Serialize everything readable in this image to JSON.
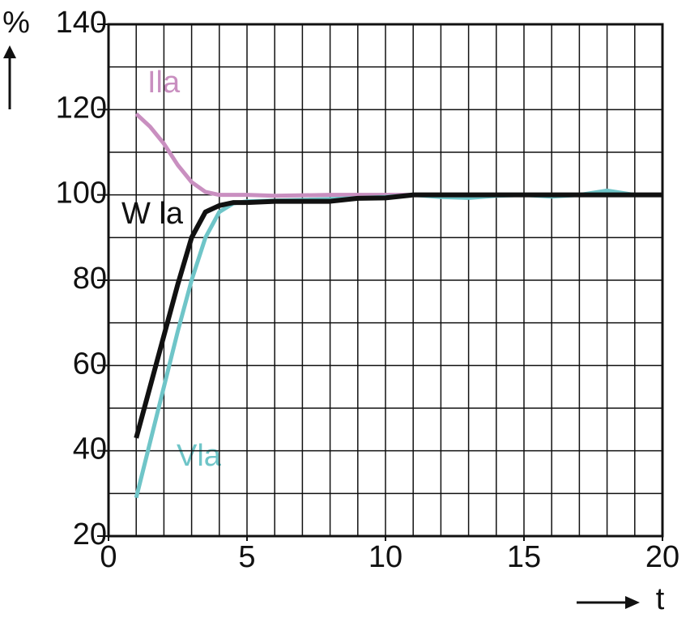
{
  "chart_data": {
    "type": "line",
    "y_label": "%",
    "x_label": "t",
    "xlim": [
      0,
      20
    ],
    "ylim": [
      20,
      140
    ],
    "xticks": [
      0,
      5,
      10,
      15,
      20
    ],
    "yticks": [
      20,
      40,
      60,
      80,
      100,
      120,
      140
    ],
    "x_grid": [
      1,
      2,
      3,
      4,
      5,
      6,
      7,
      8,
      9,
      10,
      11,
      12,
      13,
      14,
      15,
      16,
      17,
      18,
      19
    ],
    "y_grid": [
      30,
      40,
      50,
      60,
      70,
      80,
      90,
      100,
      110,
      120,
      130
    ],
    "grid": true,
    "series": [
      {
        "name": "Ila",
        "color": "#c98fc0",
        "x": [
          1,
          1.5,
          2,
          2.5,
          3,
          3.5,
          4,
          5,
          6,
          8,
          10,
          14,
          16,
          20
        ],
        "values": [
          119,
          116,
          112,
          107,
          103,
          100.7,
          100,
          100,
          99.8,
          100,
          100,
          100,
          100,
          100
        ]
      },
      {
        "name": "Vla",
        "color": "#6fc5c8",
        "x": [
          1,
          1.5,
          2,
          2.5,
          3,
          3.5,
          4,
          4.5,
          5,
          8,
          10,
          11,
          12,
          13,
          14,
          15,
          16,
          17,
          18,
          19,
          20
        ],
        "values": [
          29,
          42,
          55,
          68,
          80,
          90,
          96,
          98,
          98.5,
          99,
          99.5,
          100,
          99.5,
          99.3,
          99.8,
          100,
          99.6,
          100,
          101,
          100,
          100
        ]
      },
      {
        "name": "W la",
        "color": "#111111",
        "x": [
          1,
          1.5,
          2,
          2.5,
          3,
          3.5,
          4,
          4.5,
          5,
          6,
          8,
          9,
          10,
          11,
          20
        ],
        "values": [
          43,
          55,
          67,
          79,
          90,
          96,
          97.5,
          98.2,
          98.2,
          98.5,
          98.5,
          99.2,
          99.3,
          100,
          100
        ]
      }
    ]
  }
}
